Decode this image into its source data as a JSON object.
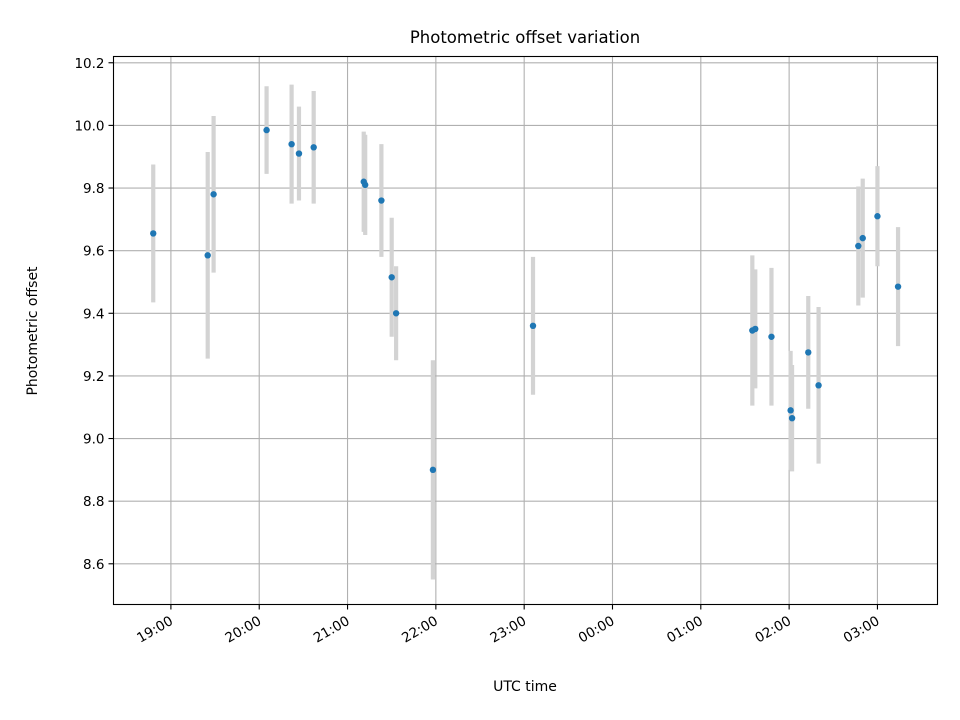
{
  "chart_data": {
    "type": "scatter",
    "title": "Photometric offset variation",
    "xlabel": "UTC time",
    "ylabel": "Photometric offset",
    "x_tick_labels": [
      "19:00",
      "20:00",
      "21:00",
      "22:00",
      "23:00",
      "00:00",
      "01:00",
      "02:00",
      "03:00"
    ],
    "y_tick_labels": [
      "8.6",
      "8.8",
      "9.0",
      "9.2",
      "9.4",
      "9.6",
      "9.8",
      "10.0",
      "10.2"
    ],
    "x_ticks_hours": [
      19,
      20,
      21,
      22,
      23,
      24,
      25,
      26,
      27
    ],
    "xlim_hours": [
      18.35,
      27.68
    ],
    "ylim": [
      8.47,
      10.22
    ],
    "y_ticks": [
      8.6,
      8.8,
      9.0,
      9.2,
      9.4,
      9.6,
      9.8,
      10.0,
      10.2
    ],
    "grid": true,
    "marker_color": "#1f77b4",
    "errorbar_color": "#d3d3d3",
    "points": [
      {
        "time": "18:48",
        "y": 9.655,
        "yerr": 0.22
      },
      {
        "time": "19:25",
        "y": 9.585,
        "yerr": 0.33
      },
      {
        "time": "19:29",
        "y": 9.78,
        "yerr": 0.25
      },
      {
        "time": "20:05",
        "y": 9.985,
        "yerr": 0.14
      },
      {
        "time": "20:22",
        "y": 9.94,
        "yerr": 0.19
      },
      {
        "time": "20:27",
        "y": 9.91,
        "yerr": 0.15
      },
      {
        "time": "20:37",
        "y": 9.93,
        "yerr": 0.18
      },
      {
        "time": "21:11",
        "y": 9.82,
        "yerr": 0.16
      },
      {
        "time": "21:12",
        "y": 9.81,
        "yerr": 0.16
      },
      {
        "time": "21:23",
        "y": 9.76,
        "yerr": 0.18
      },
      {
        "time": "21:30",
        "y": 9.515,
        "yerr": 0.19
      },
      {
        "time": "21:33",
        "y": 9.4,
        "yerr": 0.15
      },
      {
        "time": "21:58",
        "y": 8.9,
        "yerr": 0.35
      },
      {
        "time": "23:06",
        "y": 9.36,
        "yerr": 0.22
      },
      {
        "time": "01:35",
        "y": 9.345,
        "yerr": 0.24
      },
      {
        "time": "01:37",
        "y": 9.35,
        "yerr": 0.19
      },
      {
        "time": "01:48",
        "y": 9.325,
        "yerr": 0.22
      },
      {
        "time": "02:01",
        "y": 9.09,
        "yerr": 0.19
      },
      {
        "time": "02:02",
        "y": 9.065,
        "yerr": 0.17
      },
      {
        "time": "02:13",
        "y": 9.275,
        "yerr": 0.18
      },
      {
        "time": "02:20",
        "y": 9.17,
        "yerr": 0.25
      },
      {
        "time": "02:47",
        "y": 9.615,
        "yerr": 0.19
      },
      {
        "time": "02:50",
        "y": 9.64,
        "yerr": 0.19
      },
      {
        "time": "03:00",
        "y": 9.71,
        "yerr": 0.16
      },
      {
        "time": "03:14",
        "y": 9.485,
        "yerr": 0.19
      }
    ]
  }
}
